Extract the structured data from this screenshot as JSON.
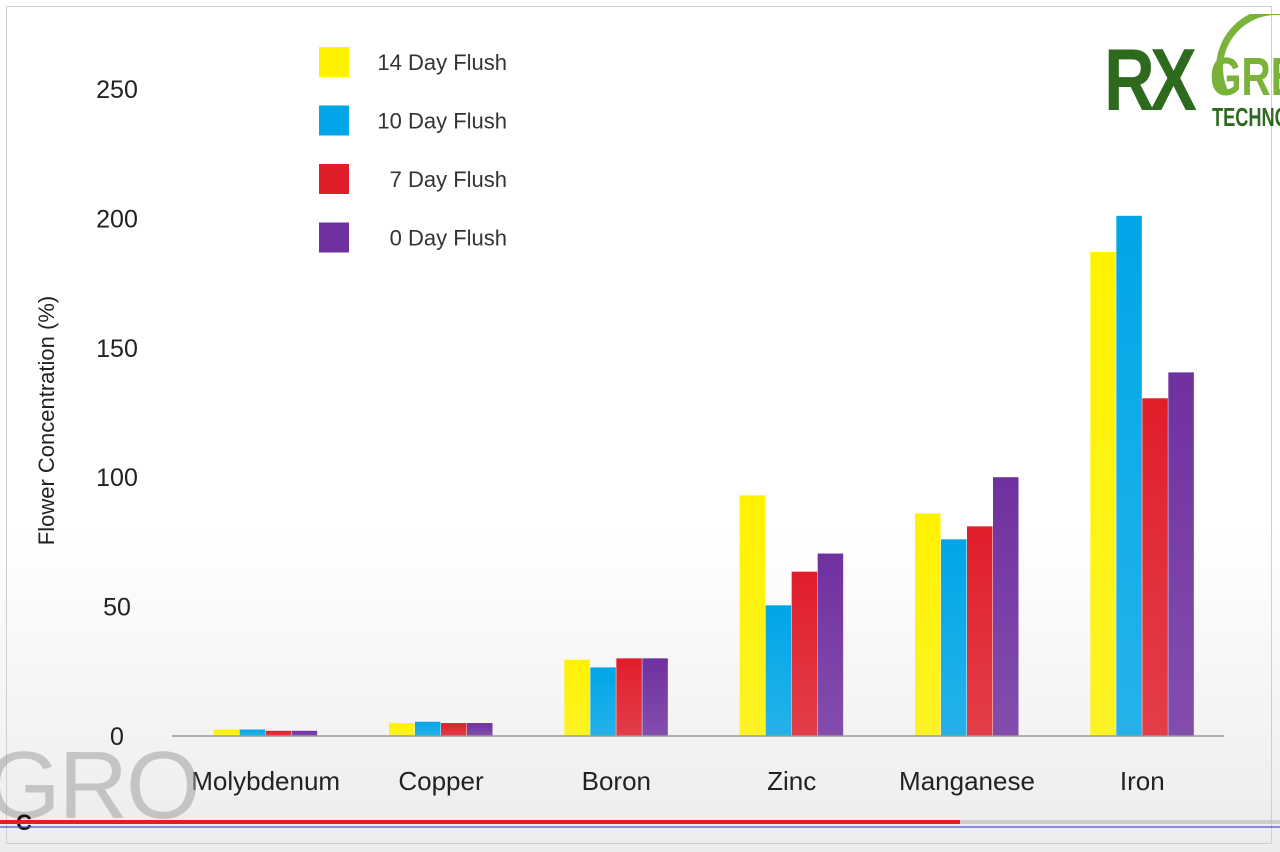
{
  "logo": {
    "brand_part1": "RX",
    "brand_part2": "GRE",
    "brand_part3": "TECHNO"
  },
  "watermark": {
    "text": "GRO",
    "corner_letter": "C"
  },
  "video": {
    "progress": 0.75
  },
  "chart_data": {
    "type": "bar",
    "categories": [
      "Molybdenum",
      "Copper",
      "Boron",
      "Zinc",
      "Manganese",
      "Iron"
    ],
    "series": [
      {
        "name": "14 Day Flush",
        "color": "#fff200",
        "values": [
          2.5,
          5,
          29.5,
          93,
          86,
          187
        ]
      },
      {
        "name": "10 Day Flush",
        "color": "#00a6e8",
        "values": [
          2.5,
          5.5,
          26.5,
          50.5,
          76,
          201
        ]
      },
      {
        "name": "7 Day Flush",
        "color": "#e01e2a",
        "values": [
          2,
          5,
          30,
          63.5,
          81,
          130.5
        ]
      },
      {
        "name": "0 Day Flush",
        "color": "#7030a0",
        "values": [
          2,
          5,
          30,
          70.5,
          100,
          140.5
        ]
      }
    ],
    "xlabel": "",
    "ylabel": "Flower Concentration (%)",
    "ylim": [
      0,
      250
    ],
    "yticks": [
      0,
      50,
      100,
      150,
      200,
      250
    ],
    "grid": false,
    "legend": "top-left"
  }
}
